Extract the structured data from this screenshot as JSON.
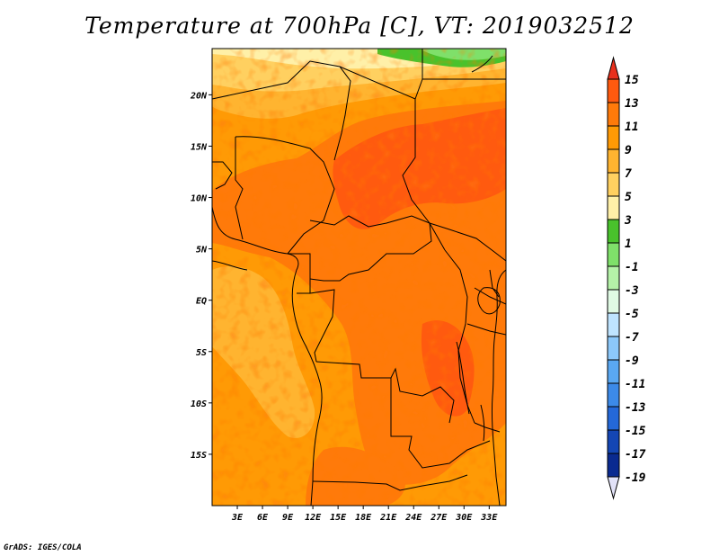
{
  "title": "Temperature at 700hPa [C], VT: 2019032512",
  "credit": "GrADS: IGES/COLA",
  "map": {
    "lon_range": [
      0,
      35
    ],
    "lat_range": [
      -20,
      24.5
    ],
    "lat_ticks": [
      {
        "value": 20,
        "label": "20N"
      },
      {
        "value": 15,
        "label": "15N"
      },
      {
        "value": 10,
        "label": "10N"
      },
      {
        "value": 5,
        "label": "5N"
      },
      {
        "value": 0,
        "label": "EQ"
      },
      {
        "value": -5,
        "label": "5S"
      },
      {
        "value": -10,
        "label": "10S"
      },
      {
        "value": -15,
        "label": "15S"
      }
    ],
    "lon_ticks": [
      {
        "value": 3,
        "label": "3E"
      },
      {
        "value": 6,
        "label": "6E"
      },
      {
        "value": 9,
        "label": "9E"
      },
      {
        "value": 12,
        "label": "12E"
      },
      {
        "value": 15,
        "label": "15E"
      },
      {
        "value": 18,
        "label": "18E"
      },
      {
        "value": 21,
        "label": "21E"
      },
      {
        "value": 24,
        "label": "24E"
      },
      {
        "value": 27,
        "label": "27E"
      },
      {
        "value": 30,
        "label": "30E"
      },
      {
        "value": 33,
        "label": "33E"
      }
    ]
  },
  "colorbar": {
    "levels": [
      "15",
      "13",
      "11",
      "9",
      "7",
      "5",
      "3",
      "1",
      "-1",
      "-3",
      "-5",
      "-7",
      "-9",
      "-11",
      "-13",
      "-15",
      "-17",
      "-19"
    ],
    "colors": [
      "#ff5a0f",
      "#ff7a0a",
      "#ff9a05",
      "#ffb430",
      "#ffd060",
      "#fff0a8",
      "#49c22c",
      "#7fe06a",
      "#b5f2a8",
      "#e0fae4",
      "#bfe4ff",
      "#8cc8fa",
      "#5aa8f2",
      "#3c8ae8",
      "#2468d8",
      "#1446b4",
      "#0a2a90"
    ],
    "top_color": "#e8301c",
    "bottom_color": "#e2e2f8"
  }
}
